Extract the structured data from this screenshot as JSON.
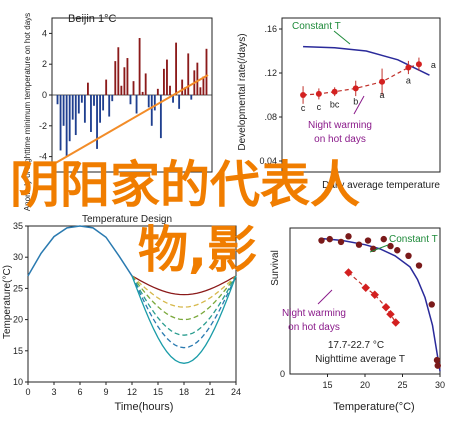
{
  "overlay": {
    "line1": "阴阳家的代表人",
    "line2": "物,影",
    "color": "#f07d00"
  },
  "chart_data": [
    {
      "id": "anomaly",
      "type": "bar",
      "title": "Beijin 1°C",
      "ylabel": "Anomaly of nighttime minimum temperature on hot days",
      "ylim": [
        -5,
        5
      ],
      "yticks": [
        "-4",
        "-2",
        "0",
        "2",
        "4"
      ],
      "colors": {
        "positive": "#8b1a1a",
        "negative": "#1f3f8f",
        "trend": "#f28c28"
      },
      "values": [
        -0.6,
        -3.6,
        -2.0,
        -4.0,
        -3.0,
        -1.6,
        -2.6,
        -1.2,
        -0.5,
        -1.8,
        0.8,
        -2.4,
        -0.7,
        -3.5,
        -1.8,
        -1.0,
        1.0,
        -1.4,
        -0.4,
        2.2,
        3.1,
        0.6,
        1.8,
        2.4,
        -0.6,
        0.9,
        -1.2,
        3.7,
        0.2,
        1.4,
        -0.8,
        -2.0,
        -1.0,
        0.4,
        -2.8,
        1.7,
        2.3,
        0.6,
        -0.5,
        3.4,
        -0.9,
        1.0,
        0.5,
        2.7,
        -0.3,
        1.6,
        2.1,
        0.5,
        1.2,
        3.0
      ],
      "trend": [
        -4.4,
        1.3
      ]
    },
    {
      "id": "rate",
      "type": "scatter",
      "ylabel": "Developmental rate(/days)",
      "xlabel": "Daily average temperature",
      "ylim": [
        0.03,
        0.17
      ],
      "yticks": [
        "0.04",
        ".08",
        ".12",
        ".16"
      ],
      "x": [
        15,
        16.5,
        18,
        20,
        22.5,
        25,
        26
      ],
      "y": [
        0.1,
        0.101,
        0.103,
        0.106,
        0.112,
        0.125,
        0.128
      ],
      "err": [
        0.008,
        0.005,
        0.004,
        0.007,
        0.012,
        0.006,
        0.006
      ],
      "letters": [
        "c",
        "c",
        "bc",
        "b",
        "a",
        "a",
        ""
      ],
      "constant": {
        "x": [
          15,
          18,
          21,
          24,
          27
        ],
        "y": [
          0.144,
          0.143,
          0.14,
          0.132,
          0.118
        ]
      },
      "labels": {
        "constant": "Constant T",
        "night_l1": "Night warming",
        "night_l2": "on hot days"
      }
    },
    {
      "id": "design",
      "type": "line",
      "title": "Temperature Design",
      "xlabel": "Time(hours)",
      "ylabel": "Temperature(°C)",
      "xlim": [
        0,
        24
      ],
      "ylim": [
        10,
        35
      ],
      "xticks": [
        "0",
        "3",
        "6",
        "9",
        "12",
        "15",
        "18",
        "21",
        "24"
      ],
      "yticks": [
        "10",
        "15",
        "20",
        "25",
        "30",
        "35"
      ],
      "day": {
        "x": [
          0,
          1.5,
          3,
          4.5,
          6,
          7.5,
          9,
          10.5,
          12
        ],
        "y": [
          27,
          30.6,
          33.3,
          34.7,
          35,
          34.7,
          33.2,
          30.2,
          27
        ]
      },
      "nights": [
        {
          "color": "#8b1a1a",
          "dashed": false,
          "min": 24
        },
        {
          "color": "#d6b84a",
          "dashed": true,
          "min": 22
        },
        {
          "color": "#7aa83a",
          "dashed": true,
          "min": 20
        },
        {
          "color": "#2a9d8f",
          "dashed": true,
          "min": 17.5
        },
        {
          "color": "#2a7ab0",
          "dashed": true,
          "min": 15.5
        },
        {
          "color": "#1a9ca8",
          "dashed": false,
          "min": 13
        }
      ]
    },
    {
      "id": "survival",
      "type": "scatter",
      "xlabel": "Temperature(°C)",
      "ylabel": "Survival",
      "xlim": [
        10,
        30
      ],
      "yticks": [
        "0"
      ],
      "xticks": [
        "15",
        "20",
        "25",
        "30"
      ],
      "constant_points": {
        "x": [
          14.2,
          15.3,
          16.8,
          17.8,
          19.2,
          20.4,
          21.1,
          22.5,
          23.4,
          24.3,
          25.8,
          27.2,
          28.9,
          29.6,
          29.7
        ],
        "y": [
          0.96,
          0.97,
          0.95,
          0.99,
          0.93,
          0.96,
          0.9,
          0.97,
          0.92,
          0.89,
          0.85,
          0.78,
          0.5,
          0.1,
          0.06
        ]
      },
      "constant_fit": {
        "x": [
          14,
          17,
          20,
          22,
          24,
          26,
          27,
          28,
          29,
          30
        ],
        "y": [
          0.975,
          0.96,
          0.93,
          0.9,
          0.85,
          0.77,
          0.68,
          0.55,
          0.35,
          0.02
        ]
      },
      "night_points": {
        "x": [
          17.8,
          20.1,
          21.3,
          22.8,
          23.4,
          24.1
        ],
        "y": [
          0.73,
          0.62,
          0.57,
          0.48,
          0.43,
          0.37
        ]
      },
      "labels": {
        "constant": "Constant T",
        "night_l1": "Night warming",
        "night_l2": "on hot days",
        "avg_l1": "17.7-22.7 °C",
        "avg_l2": "Nighttime average T"
      }
    }
  ]
}
